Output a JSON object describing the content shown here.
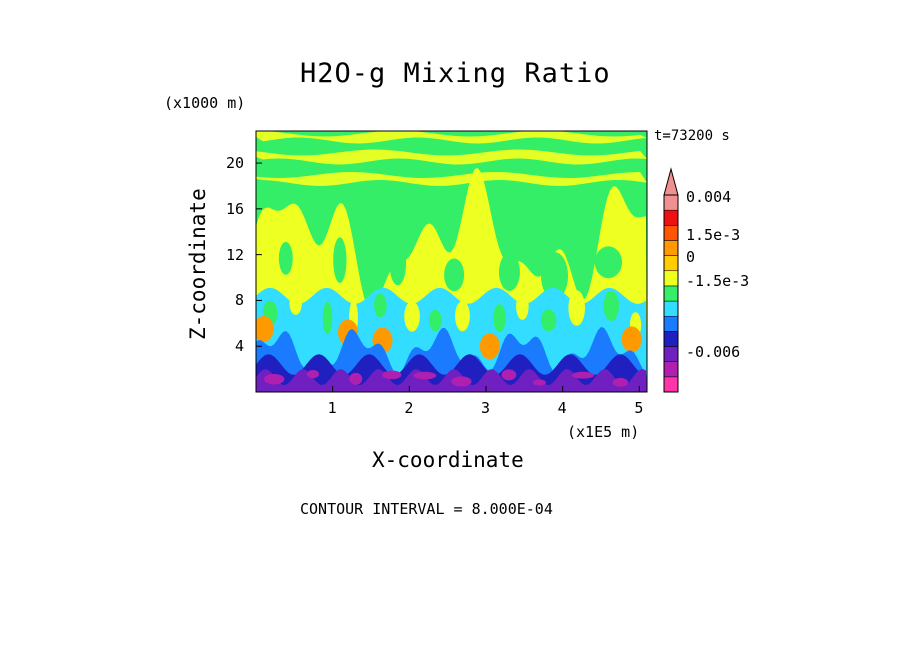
{
  "chart_data": {
    "type": "heatmap",
    "title": "H2O-g Mixing Ratio",
    "time_label": "t=73200 s",
    "xlabel": "X-coordinate",
    "ylabel": "Z-coordinate",
    "x_unit": "(x1E5 m)",
    "y_unit": "(x1000 m)",
    "xlim": [
      0,
      5.1
    ],
    "ylim": [
      0,
      22.8
    ],
    "x_ticks": [
      "1",
      "2",
      "3",
      "4",
      "5"
    ],
    "x_tick_values": [
      1,
      2,
      3,
      4,
      5
    ],
    "y_ticks": [
      "4",
      "8",
      "12",
      "16",
      "20"
    ],
    "y_tick_values": [
      4,
      8,
      12,
      16,
      20
    ],
    "contour_interval_text": "CONTOUR INTERVAL = 8.000E-04",
    "colorbar": {
      "labels": [
        "0.004",
        "1.5e-3",
        "0",
        "-1.5e-3",
        "-0.006"
      ],
      "colors": [
        "#ff33aa",
        "#b020b0",
        "#7020c0",
        "#2020c0",
        "#1a7bff",
        "#33ddff",
        "#33ee66",
        "#eeff22",
        "#ffcc00",
        "#ff9900",
        "#ff5500",
        "#ee1111",
        "#f09090"
      ]
    },
    "colors": {
      "upper_green": "#33ee66",
      "yellow": "#eeff22",
      "cyan": "#33ddff",
      "orange": "#ff9900",
      "blue": "#1a7bff",
      "navy": "#2020c0",
      "purple": "#7020c0",
      "magenta": "#b020b0"
    }
  }
}
